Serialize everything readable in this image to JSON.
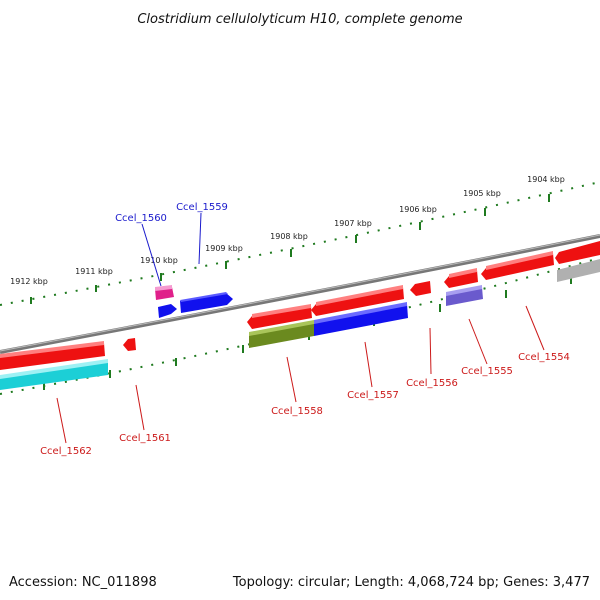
{
  "title": "Clostridium cellulolyticum H10, complete genome",
  "footer": {
    "accession": "Accession: NC_011898",
    "summary": "Topology: circular; Length: 4,068,724 bp; Genes: 3,477"
  },
  "scale": {
    "ticks": [
      {
        "label": "1904 kbp",
        "kbp": 1904
      },
      {
        "label": "1905 kbp",
        "kbp": 1905
      },
      {
        "label": "1906 kbp",
        "kbp": 1906
      },
      {
        "label": "1907 kbp",
        "kbp": 1907
      },
      {
        "label": "1908 kbp",
        "kbp": 1908
      },
      {
        "label": "1909 kbp",
        "kbp": 1909
      },
      {
        "label": "1910 kbp",
        "kbp": 1910
      },
      {
        "label": "1911 kbp",
        "kbp": 1911
      },
      {
        "label": "1912 kbp",
        "kbp": 1912
      }
    ]
  },
  "colors": {
    "backbone": "#7a7a7a",
    "tick": "#1f7a1f",
    "label_forward": "#1a1acc",
    "label_reverse": "#cc1a1a",
    "red": "#ee1111",
    "blue": "#1111ee",
    "magenta": "#e0208a",
    "olive": "#6b8a1f",
    "cyan": "#1ccfd6",
    "slate": "#6a5acd",
    "grey": "#b0b0b0"
  },
  "genes": [
    {
      "label": "Ccel_1560",
      "strand": "+",
      "color": "blue"
    },
    {
      "label": "Ccel_1559",
      "strand": "+",
      "color": "blue"
    },
    {
      "label": "Ccel_1562",
      "strand": "-",
      "color": "red"
    },
    {
      "label": "Ccel_1561",
      "strand": "-",
      "color": "red"
    },
    {
      "label": "Ccel_1558",
      "strand": "-",
      "color": "red"
    },
    {
      "label": "Ccel_1557",
      "strand": "-",
      "color": "red"
    },
    {
      "label": "Ccel_1556",
      "strand": "-",
      "color": "red"
    },
    {
      "label": "Ccel_1555",
      "strand": "-",
      "color": "red"
    },
    {
      "label": "Ccel_1554",
      "strand": "-",
      "color": "red"
    }
  ]
}
